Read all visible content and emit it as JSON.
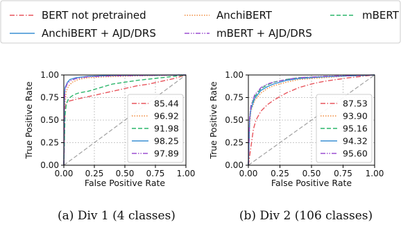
{
  "legend": {
    "entries": [
      {
        "label": "BERT not pretrained",
        "color": "#e8545c",
        "dash": "dashdot"
      },
      {
        "label": "AnchiBERT",
        "color": "#f08a3c",
        "dash": "dotted"
      },
      {
        "label": "mBERT",
        "color": "#2ab56a",
        "dash": "dashed"
      },
      {
        "label": "AnchiBERT + AJD/DRS",
        "color": "#3a8fd4",
        "dash": "solid"
      },
      {
        "label": "mBERT + AJD/DRS",
        "color": "#9b4fd0",
        "dash": "dashdotdot"
      }
    ]
  },
  "chart_data": [
    {
      "type": "line",
      "caption": "(a)  Div 1 (4 classes)",
      "xlabel": "False Positive Rate",
      "ylabel": "True Positive Rate",
      "xlim": [
        0,
        1
      ],
      "ylim": [
        0,
        1
      ],
      "xticks": [
        "0.00",
        "0.25",
        "0.50",
        "0.75",
        "1.00"
      ],
      "yticks": [
        "0.00",
        "0.25",
        "0.50",
        "0.75",
        "1.00"
      ],
      "grid": true,
      "legend_position": "lower-right",
      "series": [
        {
          "name": "85.44",
          "color": "#e8545c",
          "dash": "dashdot",
          "points": [
            [
              0,
              0
            ],
            [
              0.01,
              0.62
            ],
            [
              0.02,
              0.69
            ],
            [
              0.04,
              0.71
            ],
            [
              0.1,
              0.73
            ],
            [
              0.2,
              0.76
            ],
            [
              0.3,
              0.79
            ],
            [
              0.4,
              0.82
            ],
            [
              0.5,
              0.85
            ],
            [
              0.6,
              0.88
            ],
            [
              0.7,
              0.9
            ],
            [
              0.8,
              0.93
            ],
            [
              0.9,
              0.96
            ],
            [
              1,
              1
            ]
          ]
        },
        {
          "name": "96.92",
          "color": "#f08a3c",
          "dash": "dotted",
          "points": [
            [
              0,
              0
            ],
            [
              0.01,
              0.7
            ],
            [
              0.02,
              0.82
            ],
            [
              0.04,
              0.88
            ],
            [
              0.07,
              0.92
            ],
            [
              0.12,
              0.95
            ],
            [
              0.2,
              0.97
            ],
            [
              0.35,
              0.98
            ],
            [
              0.6,
              0.99
            ],
            [
              1,
              1
            ]
          ]
        },
        {
          "name": "91.98",
          "color": "#2ab56a",
          "dash": "dashed",
          "points": [
            [
              0,
              0
            ],
            [
              0.01,
              0.55
            ],
            [
              0.02,
              0.68
            ],
            [
              0.04,
              0.74
            ],
            [
              0.08,
              0.78
            ],
            [
              0.12,
              0.8
            ],
            [
              0.2,
              0.82
            ],
            [
              0.3,
              0.86
            ],
            [
              0.4,
              0.9
            ],
            [
              0.5,
              0.92
            ],
            [
              0.6,
              0.94
            ],
            [
              0.8,
              0.97
            ],
            [
              1,
              1
            ]
          ]
        },
        {
          "name": "98.25",
          "color": "#3a8fd4",
          "dash": "solid",
          "points": [
            [
              0,
              0
            ],
            [
              0.005,
              0.75
            ],
            [
              0.01,
              0.86
            ],
            [
              0.03,
              0.92
            ],
            [
              0.05,
              0.95
            ],
            [
              0.1,
              0.97
            ],
            [
              0.2,
              0.985
            ],
            [
              0.4,
              0.995
            ],
            [
              1,
              1
            ]
          ]
        },
        {
          "name": "97.89",
          "color": "#9b4fd0",
          "dash": "dashdotdot",
          "points": [
            [
              0,
              0
            ],
            [
              0.005,
              0.72
            ],
            [
              0.01,
              0.84
            ],
            [
              0.03,
              0.91
            ],
            [
              0.06,
              0.94
            ],
            [
              0.1,
              0.96
            ],
            [
              0.2,
              0.98
            ],
            [
              0.4,
              0.99
            ],
            [
              1,
              1
            ]
          ]
        },
        {
          "name": "",
          "color": "#a0a0a0",
          "dash": "dashed",
          "points": [
            [
              0,
              0
            ],
            [
              1,
              1
            ]
          ]
        }
      ]
    },
    {
      "type": "line",
      "caption": "(b)  Div 2 (106 classes)",
      "xlabel": "False Positive Rate",
      "ylabel": "True Positive Rate",
      "xlim": [
        0,
        1
      ],
      "ylim": [
        0,
        1
      ],
      "xticks": [
        "0.00",
        "0.25",
        "0.50",
        "0.75",
        "1.00"
      ],
      "yticks": [
        "0.00",
        "0.25",
        "0.50",
        "0.75",
        "1.00"
      ],
      "grid": true,
      "legend_position": "lower-right",
      "series": [
        {
          "name": "87.53",
          "color": "#e8545c",
          "dash": "dashdot",
          "points": [
            [
              0,
              0
            ],
            [
              0.02,
              0.2
            ],
            [
              0.04,
              0.4
            ],
            [
              0.06,
              0.5
            ],
            [
              0.1,
              0.6
            ],
            [
              0.15,
              0.67
            ],
            [
              0.2,
              0.72
            ],
            [
              0.3,
              0.8
            ],
            [
              0.4,
              0.86
            ],
            [
              0.5,
              0.9
            ],
            [
              0.6,
              0.93
            ],
            [
              0.7,
              0.95
            ],
            [
              0.8,
              0.97
            ],
            [
              1,
              1
            ]
          ]
        },
        {
          "name": "93.90",
          "color": "#f08a3c",
          "dash": "dotted",
          "points": [
            [
              0,
              0
            ],
            [
              0.01,
              0.45
            ],
            [
              0.02,
              0.6
            ],
            [
              0.05,
              0.72
            ],
            [
              0.1,
              0.8
            ],
            [
              0.15,
              0.85
            ],
            [
              0.2,
              0.88
            ],
            [
              0.3,
              0.92
            ],
            [
              0.4,
              0.95
            ],
            [
              0.6,
              0.97
            ],
            [
              0.8,
              0.99
            ],
            [
              1,
              1
            ]
          ]
        },
        {
          "name": "95.16",
          "color": "#2ab56a",
          "dash": "dashed",
          "points": [
            [
              0,
              0
            ],
            [
              0.01,
              0.5
            ],
            [
              0.02,
              0.65
            ],
            [
              0.05,
              0.76
            ],
            [
              0.1,
              0.85
            ],
            [
              0.15,
              0.89
            ],
            [
              0.2,
              0.92
            ],
            [
              0.3,
              0.95
            ],
            [
              0.4,
              0.97
            ],
            [
              0.6,
              0.98
            ],
            [
              1,
              1
            ]
          ]
        },
        {
          "name": "94.32",
          "color": "#3a8fd4",
          "dash": "solid",
          "points": [
            [
              0,
              0
            ],
            [
              0.01,
              0.5
            ],
            [
              0.02,
              0.62
            ],
            [
              0.05,
              0.74
            ],
            [
              0.1,
              0.83
            ],
            [
              0.15,
              0.87
            ],
            [
              0.2,
              0.9
            ],
            [
              0.3,
              0.94
            ],
            [
              0.4,
              0.96
            ],
            [
              0.6,
              0.98
            ],
            [
              1,
              1
            ]
          ]
        },
        {
          "name": "95.60",
          "color": "#9b4fd0",
          "dash": "dashdotdot",
          "points": [
            [
              0,
              0
            ],
            [
              0.01,
              0.52
            ],
            [
              0.02,
              0.66
            ],
            [
              0.05,
              0.78
            ],
            [
              0.1,
              0.86
            ],
            [
              0.15,
              0.9
            ],
            [
              0.2,
              0.92
            ],
            [
              0.3,
              0.95
            ],
            [
              0.4,
              0.97
            ],
            [
              0.6,
              0.985
            ],
            [
              1,
              1
            ]
          ]
        },
        {
          "name": "",
          "color": "#a0a0a0",
          "dash": "dashed",
          "points": [
            [
              0,
              0
            ],
            [
              1,
              1
            ]
          ]
        }
      ]
    }
  ]
}
